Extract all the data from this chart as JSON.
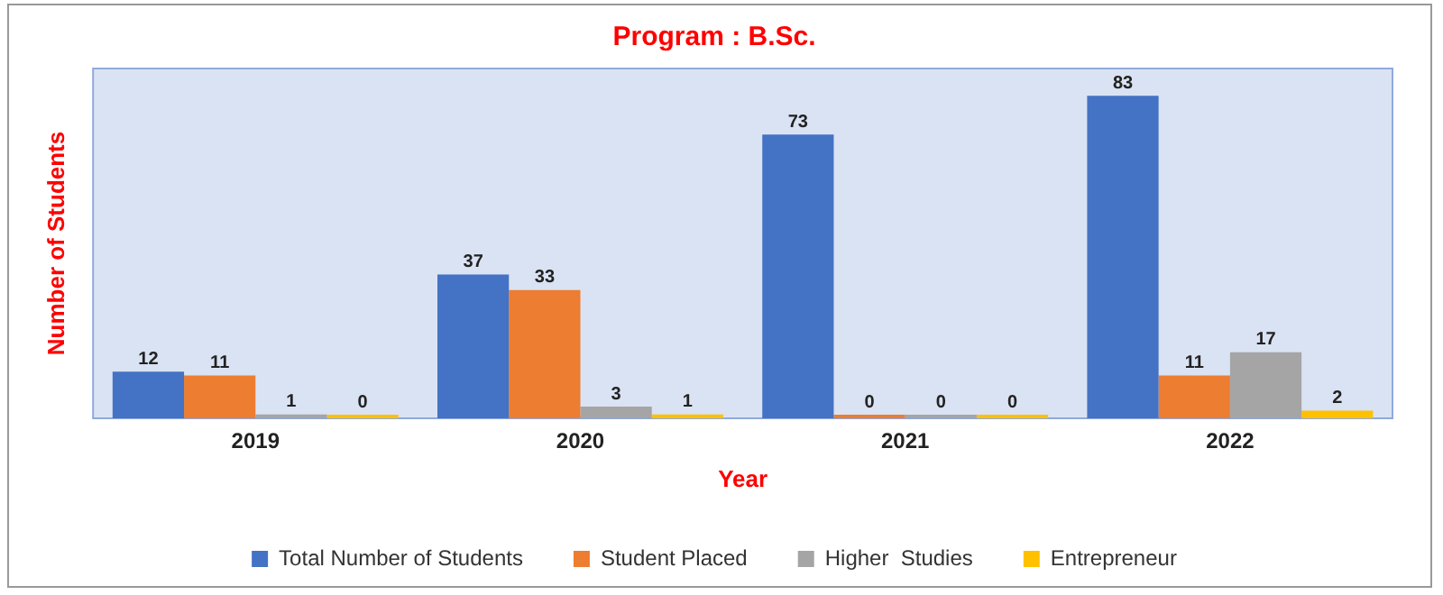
{
  "chart_data": {
    "type": "bar",
    "title": "Program : B.Sc.",
    "xlabel": "Year",
    "ylabel": "Number of Students",
    "categories": [
      "2019",
      "2020",
      "2021",
      "2022"
    ],
    "series": [
      {
        "name": "Total Number of Students",
        "color": "#4472c4",
        "values": [
          12,
          37,
          73,
          83
        ]
      },
      {
        "name": "Student Placed",
        "color": "#ed7d31",
        "values": [
          11,
          33,
          0,
          11
        ]
      },
      {
        "name": "Higher  Studies",
        "color": "#a5a5a5",
        "values": [
          1,
          3,
          0,
          17
        ]
      },
      {
        "name": "Entrepreneur",
        "color": "#ffc000",
        "values": [
          0,
          1,
          0,
          2
        ]
      }
    ],
    "data_labels": true,
    "legend": "bottom",
    "grid": false,
    "tick_labels": "x"
  }
}
